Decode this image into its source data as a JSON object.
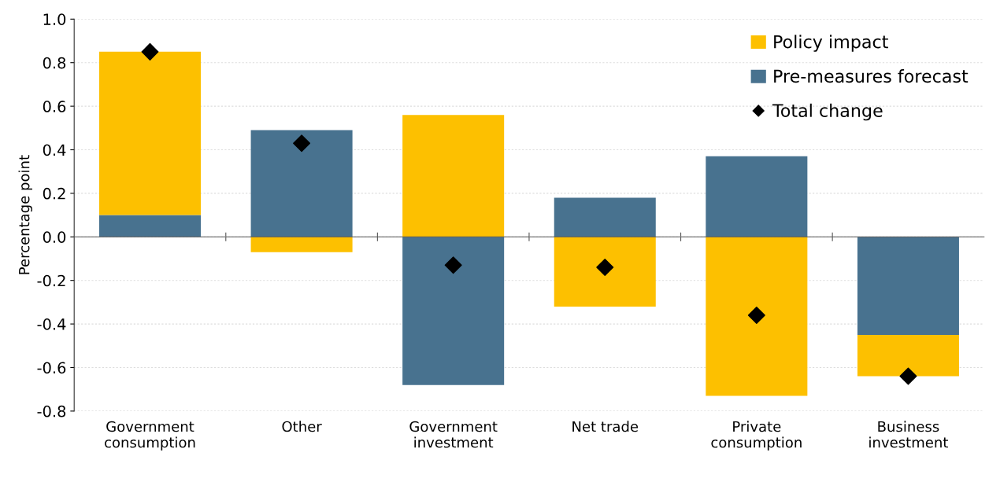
{
  "chart_data": {
    "type": "bar",
    "stacked": true,
    "ylabel": "Percentage point",
    "categories": [
      "Government\nconsumption",
      "Other",
      "Government\ninvestment",
      "Net trade",
      "Private\nconsumption",
      "Business\ninvestment"
    ],
    "series": [
      {
        "name": "Pre-measures forecast",
        "color": "#48728f",
        "values": [
          0.1,
          0.49,
          -0.68,
          0.18,
          0.37,
          -0.45
        ]
      },
      {
        "name": "Policy impact",
        "color": "#fdc000",
        "values": [
          0.75,
          -0.07,
          0.56,
          -0.32,
          -0.73,
          -0.19
        ]
      },
      {
        "name": "Total change",
        "type": "scatter",
        "color": "#000000",
        "marker": "diamond",
        "values": [
          0.85,
          0.43,
          -0.13,
          -0.14,
          -0.36,
          -0.64
        ]
      }
    ],
    "ylim": [
      -0.8,
      1.0
    ],
    "yticks": [
      {
        "value": -0.8,
        "label": "-0.8"
      },
      {
        "value": -0.6,
        "label": "-0.6"
      },
      {
        "value": -0.4,
        "label": "-0.4"
      },
      {
        "value": -0.2,
        "label": "-0.2"
      },
      {
        "value": 0,
        "label": "0.0"
      },
      {
        "value": 0.2,
        "label": "0.2"
      },
      {
        "value": 0.4,
        "label": "0.4"
      },
      {
        "value": 0.6,
        "label": "0.6"
      },
      {
        "value": 0.8,
        "label": "0.8"
      },
      {
        "value": 1.0,
        "label": "1.0"
      }
    ],
    "grid": "y",
    "legend": "top right"
  }
}
